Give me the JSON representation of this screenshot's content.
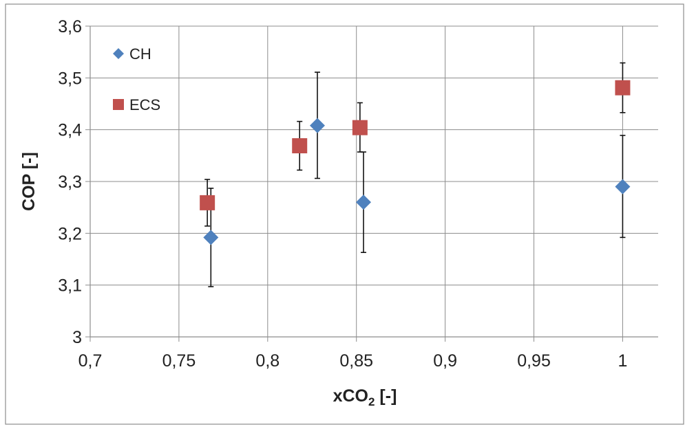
{
  "chart_data": {
    "type": "scatter",
    "xlabel_main": "xCO",
    "xlabel_sub": "2",
    "xlabel_suffix": " [-]",
    "ylabel": "COP [-]",
    "xlim": [
      0.7,
      1.02
    ],
    "ylim": [
      3.0,
      3.6
    ],
    "x_ticks": [
      0.7,
      0.75,
      0.8,
      0.85,
      0.9,
      0.95,
      1.0
    ],
    "x_tick_labels": [
      "0,7",
      "0,75",
      "0,8",
      "0,85",
      "0,9",
      "0,95",
      "1"
    ],
    "y_ticks": [
      3.0,
      3.1,
      3.2,
      3.3,
      3.4,
      3.5,
      3.6
    ],
    "y_tick_labels": [
      "3",
      "3,1",
      "3,2",
      "3,3",
      "3,4",
      "3,5",
      "3,6"
    ],
    "grid": true,
    "legend_position": "top-left",
    "series": [
      {
        "name": "CH",
        "marker": "diamond",
        "color": "#4f81bd",
        "points": [
          {
            "x": 0.768,
            "y": 3.192,
            "err_low": 3.097,
            "err_high": 3.287
          },
          {
            "x": 0.828,
            "y": 3.408,
            "err_low": 3.306,
            "err_high": 3.511
          },
          {
            "x": 0.854,
            "y": 3.26,
            "err_low": 3.163,
            "err_high": 3.357
          },
          {
            "x": 1.0,
            "y": 3.29,
            "err_low": 3.192,
            "err_high": 3.389
          }
        ]
      },
      {
        "name": "ECS",
        "marker": "square",
        "color": "#c0504d",
        "points": [
          {
            "x": 0.766,
            "y": 3.259,
            "err_low": 3.214,
            "err_high": 3.304
          },
          {
            "x": 0.818,
            "y": 3.369,
            "err_low": 3.322,
            "err_high": 3.416
          },
          {
            "x": 0.852,
            "y": 3.404,
            "err_low": 3.357,
            "err_high": 3.452
          },
          {
            "x": 1.0,
            "y": 3.481,
            "err_low": 3.433,
            "err_high": 3.529
          }
        ]
      }
    ]
  }
}
